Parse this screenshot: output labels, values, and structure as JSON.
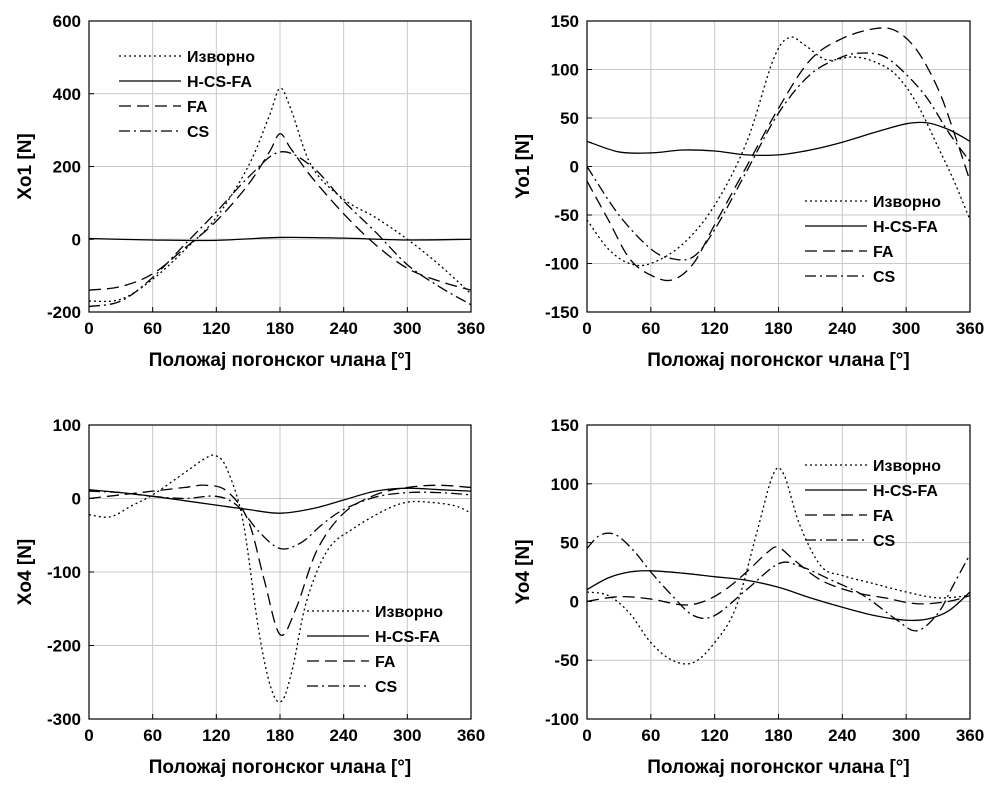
{
  "chart_data": [
    {
      "type": "line",
      "title": "",
      "xlabel": "Положај погонског члана [°]",
      "ylabel": "Xo1 [N]",
      "xlim": [
        0,
        360
      ],
      "ylim": [
        -200,
        600
      ],
      "xticks": [
        0,
        60,
        120,
        180,
        240,
        300,
        360
      ],
      "yticks": [
        -200,
        0,
        200,
        400,
        600
      ],
      "grid": true,
      "legend_position": "top-left",
      "series": [
        {
          "name": "Изворно",
          "dash": "dotted",
          "x": [
            0,
            30,
            60,
            90,
            120,
            150,
            170,
            180,
            190,
            210,
            240,
            270,
            300,
            330,
            360
          ],
          "y": [
            -170,
            -165,
            -110,
            -30,
            60,
            200,
            340,
            415,
            360,
            200,
            110,
            60,
            0,
            -70,
            -150
          ]
        },
        {
          "name": "H-CS-FA",
          "dash": "solid",
          "x": [
            0,
            60,
            120,
            180,
            240,
            300,
            360
          ],
          "y": [
            2,
            -2,
            -3,
            5,
            3,
            -2,
            0
          ]
        },
        {
          "name": "FA",
          "dash": "dashed",
          "x": [
            0,
            30,
            60,
            90,
            120,
            150,
            170,
            180,
            190,
            210,
            240,
            270,
            300,
            330,
            360
          ],
          "y": [
            -140,
            -130,
            -95,
            -25,
            50,
            150,
            240,
            290,
            250,
            170,
            70,
            -15,
            -80,
            -115,
            -140
          ]
        },
        {
          "name": "CS",
          "dash": "dashdot",
          "x": [
            0,
            30,
            60,
            90,
            120,
            150,
            180,
            210,
            240,
            270,
            300,
            330,
            360
          ],
          "y": [
            -185,
            -170,
            -105,
            -15,
            75,
            170,
            240,
            200,
            105,
            20,
            -70,
            -130,
            -180
          ]
        }
      ]
    },
    {
      "type": "line",
      "title": "",
      "xlabel": "Положај погонског члана [°]",
      "ylabel": "Yo1 [N]",
      "xlim": [
        0,
        360
      ],
      "ylim": [
        -150,
        150
      ],
      "xticks": [
        0,
        60,
        120,
        180,
        240,
        300,
        360
      ],
      "yticks": [
        -150,
        -100,
        -50,
        0,
        50,
        100,
        150
      ],
      "grid": true,
      "legend_position": "bottom-right",
      "series": [
        {
          "name": "Изворно",
          "dash": "dotted",
          "x": [
            0,
            20,
            40,
            60,
            90,
            120,
            150,
            175,
            190,
            205,
            225,
            250,
            270,
            290,
            310,
            330,
            345,
            360
          ],
          "y": [
            -55,
            -85,
            -100,
            -100,
            -80,
            -40,
            25,
            110,
            133,
            125,
            110,
            113,
            108,
            95,
            65,
            20,
            -15,
            -55
          ]
        },
        {
          "name": "H-CS-FA",
          "dash": "solid",
          "x": [
            0,
            30,
            60,
            90,
            120,
            150,
            180,
            210,
            240,
            270,
            300,
            320,
            340,
            360
          ],
          "y": [
            26,
            15,
            14,
            17,
            16,
            12,
            12,
            17,
            25,
            35,
            44,
            45,
            38,
            26
          ]
        },
        {
          "name": "FA",
          "dash": "dashed",
          "x": [
            0,
            20,
            40,
            60,
            80,
            100,
            120,
            150,
            180,
            210,
            240,
            270,
            290,
            310,
            330,
            345,
            360
          ],
          "y": [
            -15,
            -55,
            -95,
            -112,
            -117,
            -100,
            -60,
            0,
            60,
            110,
            132,
            142,
            140,
            120,
            80,
            35,
            -15
          ]
        },
        {
          "name": "CS",
          "dash": "dashdot",
          "x": [
            0,
            30,
            60,
            80,
            100,
            120,
            150,
            180,
            210,
            240,
            260,
            280,
            300,
            320,
            340,
            360
          ],
          "y": [
            0,
            -50,
            -85,
            -95,
            -93,
            -65,
            -5,
            55,
            95,
            113,
            117,
            113,
            95,
            70,
            35,
            5
          ]
        }
      ]
    },
    {
      "type": "line",
      "title": "",
      "xlabel": "Положај погонског члана [°]",
      "ylabel": "Xo4 [N]",
      "xlim": [
        0,
        360
      ],
      "ylim": [
        -300,
        100
      ],
      "xticks": [
        0,
        60,
        120,
        180,
        240,
        300,
        360
      ],
      "yticks": [
        -300,
        -200,
        -100,
        0,
        100
      ],
      "grid": true,
      "legend_position": "bottom-right",
      "series": [
        {
          "name": "Изворно",
          "dash": "dotted",
          "x": [
            0,
            20,
            40,
            60,
            90,
            110,
            120,
            130,
            145,
            160,
            172,
            182,
            192,
            205,
            225,
            250,
            280,
            300,
            320,
            345,
            360
          ],
          "y": [
            -22,
            -25,
            -10,
            5,
            35,
            55,
            58,
            40,
            -30,
            -180,
            -260,
            -275,
            -230,
            -140,
            -70,
            -40,
            -15,
            -5,
            -5,
            -10,
            -20
          ]
        },
        {
          "name": "H-CS-FA",
          "dash": "solid",
          "x": [
            0,
            30,
            60,
            90,
            120,
            150,
            180,
            210,
            240,
            270,
            300,
            330,
            360
          ],
          "y": [
            12,
            8,
            3,
            -3,
            -9,
            -15,
            -20,
            -14,
            -2,
            10,
            14,
            12,
            10
          ]
        },
        {
          "name": "FA",
          "dash": "dashed",
          "x": [
            0,
            30,
            60,
            90,
            110,
            130,
            150,
            165,
            180,
            195,
            215,
            240,
            270,
            300,
            330,
            360
          ],
          "y": [
            0,
            5,
            10,
            15,
            18,
            10,
            -30,
            -110,
            -185,
            -150,
            -70,
            -20,
            5,
            15,
            18,
            15
          ]
        },
        {
          "name": "CS",
          "dash": "dashdot",
          "x": [
            0,
            30,
            60,
            90,
            120,
            140,
            160,
            180,
            200,
            220,
            240,
            270,
            300,
            330,
            360
          ],
          "y": [
            10,
            8,
            3,
            0,
            3,
            -10,
            -45,
            -68,
            -60,
            -35,
            -15,
            2,
            8,
            8,
            5
          ]
        }
      ]
    },
    {
      "type": "line",
      "title": "",
      "xlabel": "Положај погонског члана [°]",
      "ylabel": "Yo4 [N]",
      "xlim": [
        0,
        360
      ],
      "ylim": [
        -100,
        150
      ],
      "xticks": [
        0,
        60,
        120,
        180,
        240,
        300,
        360
      ],
      "yticks": [
        -100,
        -50,
        0,
        50,
        100,
        150
      ],
      "grid": true,
      "legend_position": "top-right",
      "series": [
        {
          "name": "Изворно",
          "dash": "dotted",
          "x": [
            0,
            20,
            40,
            60,
            80,
            100,
            120,
            140,
            160,
            175,
            185,
            200,
            220,
            240,
            270,
            300,
            330,
            360
          ],
          "y": [
            8,
            5,
            -10,
            -35,
            -50,
            -52,
            -35,
            -5,
            60,
            108,
            108,
            65,
            30,
            22,
            15,
            8,
            3,
            5
          ]
        },
        {
          "name": "H-CS-FA",
          "dash": "solid",
          "x": [
            0,
            20,
            40,
            60,
            90,
            120,
            150,
            180,
            210,
            240,
            270,
            300,
            320,
            340,
            360
          ],
          "y": [
            10,
            20,
            25,
            26,
            24,
            21,
            18,
            12,
            3,
            -5,
            -12,
            -16,
            -15,
            -8,
            8
          ]
        },
        {
          "name": "FA",
          "dash": "dashed",
          "x": [
            0,
            30,
            60,
            90,
            110,
            130,
            150,
            170,
            180,
            195,
            220,
            250,
            280,
            310,
            340,
            360
          ],
          "y": [
            0,
            4,
            2,
            -3,
            0,
            10,
            25,
            42,
            46,
            35,
            18,
            8,
            3,
            -2,
            0,
            5
          ]
        },
        {
          "name": "CS",
          "dash": "dashdot",
          "x": [
            0,
            10,
            20,
            30,
            45,
            60,
            80,
            100,
            120,
            150,
            180,
            200,
            230,
            260,
            290,
            310,
            330,
            345,
            360
          ],
          "y": [
            45,
            55,
            58,
            55,
            42,
            25,
            5,
            -12,
            -12,
            10,
            32,
            30,
            18,
            5,
            -15,
            -25,
            -10,
            15,
            40
          ]
        }
      ]
    }
  ]
}
